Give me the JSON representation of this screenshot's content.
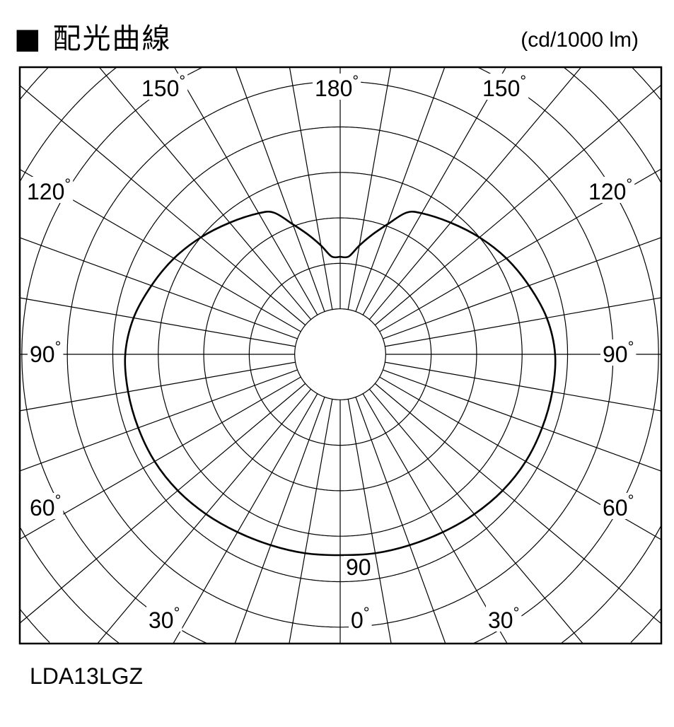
{
  "title": "■ 配光曲線",
  "unit": "(cd/1000 lm)",
  "model": "LDA13LGZ",
  "chart_data": {
    "type": "polar",
    "title": "配光曲線",
    "unit": "(cd/1000 lm)",
    "angle_labels": {
      "a180": "180",
      "a150": "150",
      "a120": "120",
      "a90": "90",
      "a60": "60",
      "a30": "30",
      "a0": "0",
      "deg": "°"
    },
    "angle_grid_step_deg": 10,
    "peak_label": "90",
    "series": [
      {
        "angles_deg": [
          0,
          10,
          20,
          30,
          40,
          50,
          60,
          70,
          80,
          90,
          100,
          110,
          120,
          130,
          140,
          150,
          155,
          160,
          165,
          170,
          175,
          180
        ],
        "values": [
          90,
          90.5,
          91,
          92,
          93.5,
          95,
          96,
          96.3,
          96.5,
          96.3,
          94,
          90,
          86,
          81.5,
          77,
          73,
          70,
          62,
          55.5,
          49.5,
          44,
          43.7
        ]
      }
    ],
    "symmetric": true,
    "grid": true,
    "colors": {
      "line": "#000000",
      "grid": "#000000"
    }
  }
}
